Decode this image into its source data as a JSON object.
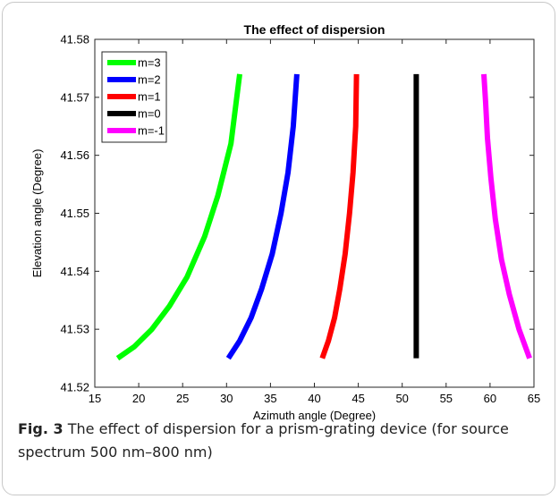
{
  "chart_data": {
    "type": "line",
    "title": "The effect of dispersion",
    "xlabel": "Azimuth angle (Degree)",
    "ylabel": "Elevation angle (Degree)",
    "xlim": [
      15,
      65
    ],
    "ylim": [
      41.52,
      41.58
    ],
    "xticks": [
      "15",
      "20",
      "25",
      "30",
      "35",
      "40",
      "45",
      "50",
      "55",
      "60",
      "65"
    ],
    "yticks": [
      "41.52",
      "41.53",
      "41.54",
      "41.55",
      "41.56",
      "41.57",
      "41.58"
    ],
    "grid": false,
    "legend_position": "top-left",
    "series": [
      {
        "name": "m=3",
        "color": "#00ff00",
        "x": [
          17.6,
          19.5,
          21.5,
          23.5,
          25.5,
          27.5,
          29.0,
          30.5,
          31.5
        ],
        "y": [
          41.525,
          41.527,
          41.53,
          41.534,
          41.539,
          41.546,
          41.553,
          41.562,
          41.574
        ]
      },
      {
        "name": "m=2",
        "color": "#0000ff",
        "x": [
          30.2,
          31.5,
          32.8,
          34.0,
          35.2,
          36.2,
          37.0,
          37.6,
          38.0
        ],
        "y": [
          41.525,
          41.528,
          41.532,
          41.537,
          41.543,
          41.55,
          41.557,
          41.565,
          41.574
        ]
      },
      {
        "name": "m=1",
        "color": "#ff0000",
        "x": [
          40.9,
          41.6,
          42.3,
          42.9,
          43.5,
          44.0,
          44.4,
          44.7,
          44.8
        ],
        "y": [
          41.525,
          41.528,
          41.532,
          41.537,
          41.543,
          41.55,
          41.557,
          41.565,
          41.574
        ]
      },
      {
        "name": "m=0",
        "color": "#000000",
        "x": [
          51.6,
          51.6
        ],
        "y": [
          41.525,
          41.574
        ]
      },
      {
        "name": "m=-1",
        "color": "#ff00ff",
        "x": [
          64.5,
          63.3,
          62.2,
          61.3,
          60.6,
          60.1,
          59.7,
          59.5,
          59.3
        ],
        "y": [
          41.525,
          41.53,
          41.536,
          41.542,
          41.549,
          41.556,
          41.563,
          41.569,
          41.574
        ]
      }
    ]
  },
  "caption": {
    "label": "Fig. 3",
    "text": "The effect of dispersion for a prism-grating device (for source spectrum 500 nm–800 nm)"
  }
}
